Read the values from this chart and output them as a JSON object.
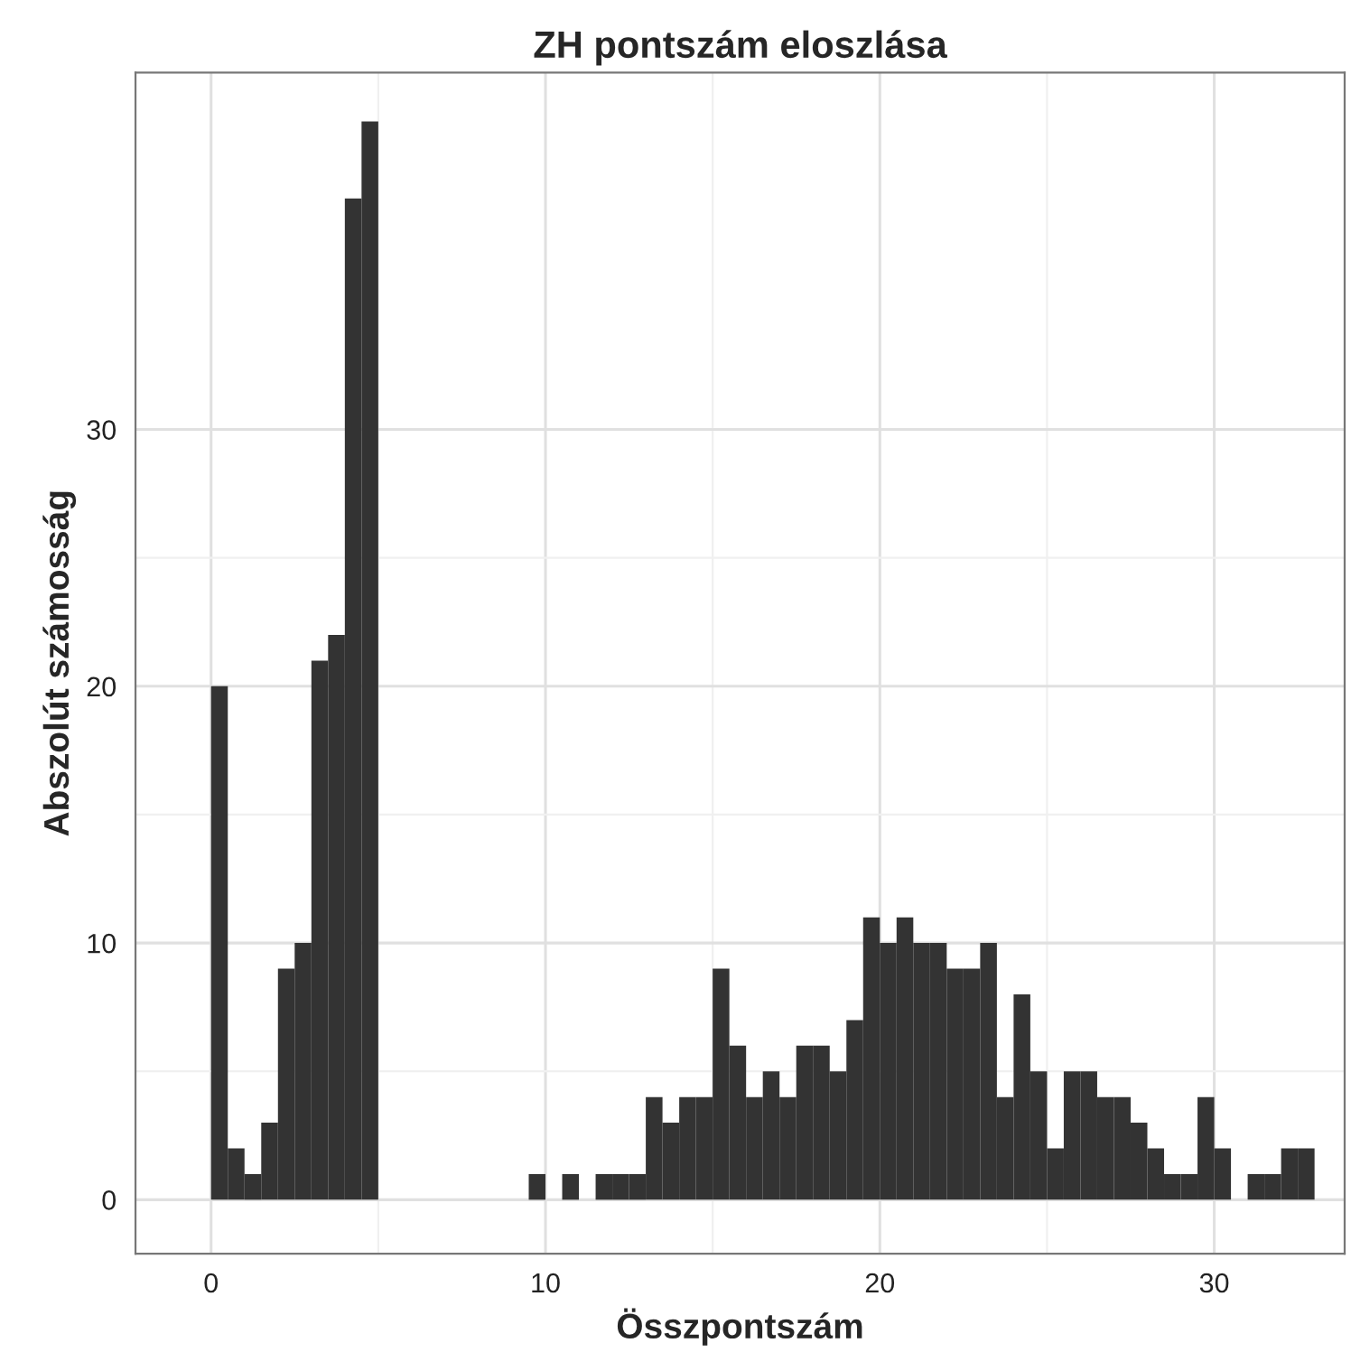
{
  "chart_data": {
    "type": "histogram",
    "title": "ZH pontszám eloszlása",
    "xlabel": "Összpontszám",
    "ylabel": "Abszolút számosság",
    "color": "#333333",
    "bins": [
      0,
      0.5,
      1,
      1.5,
      2,
      2.5,
      3,
      3.5,
      4,
      4.5,
      5,
      5.5,
      6,
      6.5,
      7,
      7.5,
      8,
      8.5,
      9,
      9.5,
      10,
      10.5,
      11,
      11.5,
      12,
      12.5,
      13,
      13.5,
      14,
      14.5,
      15,
      15.5,
      16,
      16.5,
      17,
      17.5,
      18,
      18.5,
      19,
      19.5,
      20,
      20.5,
      21,
      21.5,
      22,
      22.5,
      23,
      23.5,
      24,
      24.5,
      25,
      25.5,
      26,
      26.5,
      27,
      27.5,
      28,
      28.5,
      29,
      29.5,
      30,
      30.5,
      31,
      31.5,
      32,
      32.5,
      33
    ],
    "values": [
      20,
      2,
      1,
      3,
      9,
      10,
      21,
      22,
      39,
      42,
      0,
      0,
      0,
      0,
      0,
      0,
      0,
      0,
      0,
      1,
      0,
      1,
      0,
      1,
      1,
      1,
      4,
      3,
      4,
      4,
      9,
      6,
      4,
      5,
      4,
      6,
      6,
      5,
      7,
      11,
      10,
      11,
      10,
      10,
      9,
      9,
      10,
      4,
      8,
      5,
      2,
      5,
      5,
      4,
      4,
      3,
      2,
      1,
      1,
      4,
      2,
      0,
      1,
      1,
      2,
      2
    ],
    "xlim": [
      -2.26,
      33.9
    ],
    "ylim": [
      -2.1,
      43.9
    ],
    "xticks": [
      0,
      10,
      20,
      30
    ],
    "yticks": [
      0,
      10,
      20,
      30
    ],
    "grid": true
  }
}
